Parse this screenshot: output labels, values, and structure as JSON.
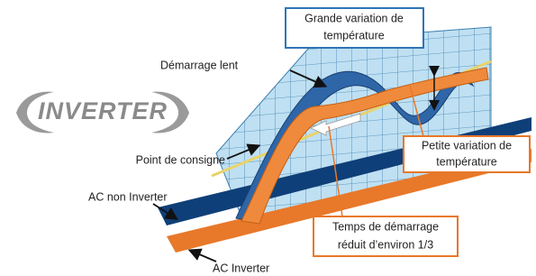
{
  "logo": "INVERTER",
  "labels": {
    "big_variation": [
      "Grande variation de",
      "température"
    ],
    "slow_start": "Démarrage lent",
    "setpoint": "Point de consigne",
    "small_variation": [
      "Petite variation de",
      "température"
    ],
    "non_inverter": "AC non Inverter",
    "start_time": [
      "Temps de démarrage",
      "réduit d’environ 1/3"
    ],
    "inverter": "AC Inverter"
  }
}
